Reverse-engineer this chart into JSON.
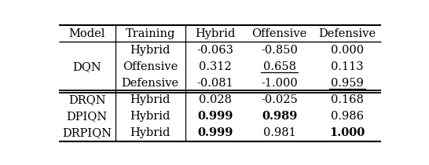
{
  "col_headers": [
    "Model",
    "Training",
    "Hybrid",
    "Offensive",
    "Defensive"
  ],
  "rows": [
    {
      "model": "",
      "training": "Hybrid",
      "hybrid": "-0.063",
      "offensive": "-0.850",
      "defensive": "0.000",
      "bold_hybrid": false,
      "bold_offensive": false,
      "bold_defensive": false,
      "under_hybrid": false,
      "under_offensive": false,
      "under_defensive": false
    },
    {
      "model": "DQN",
      "training": "Offensive",
      "hybrid": "0.312",
      "offensive": "0.658",
      "defensive": "0.113",
      "bold_hybrid": false,
      "bold_offensive": false,
      "bold_defensive": false,
      "under_hybrid": false,
      "under_offensive": true,
      "under_defensive": false
    },
    {
      "model": "",
      "training": "Defensive",
      "hybrid": "-0.081",
      "offensive": "-1.000",
      "defensive": "0.959",
      "bold_hybrid": false,
      "bold_offensive": false,
      "bold_defensive": false,
      "under_hybrid": false,
      "under_offensive": false,
      "under_defensive": true
    },
    {
      "model": "DRQN",
      "training": "Hybrid",
      "hybrid": "0.028",
      "offensive": "-0.025",
      "defensive": "0.168",
      "bold_hybrid": false,
      "bold_offensive": false,
      "bold_defensive": false,
      "under_hybrid": false,
      "under_offensive": false,
      "under_defensive": false
    },
    {
      "model": "DPIQN",
      "training": "Hybrid",
      "hybrid": "0.999",
      "offensive": "0.989",
      "defensive": "0.986",
      "bold_hybrid": true,
      "bold_offensive": true,
      "bold_defensive": false,
      "under_hybrid": false,
      "under_offensive": false,
      "under_defensive": false
    },
    {
      "model": "DRPIQN",
      "training": "Hybrid",
      "hybrid": "0.999",
      "offensive": "0.981",
      "defensive": "1.000",
      "bold_hybrid": true,
      "bold_offensive": false,
      "bold_defensive": true,
      "under_hybrid": false,
      "under_offensive": false,
      "under_defensive": false
    }
  ],
  "dqn_model_row": 1,
  "double_line_after_data_row": 3,
  "bg_color": "#ffffff",
  "font_size": 10.5
}
